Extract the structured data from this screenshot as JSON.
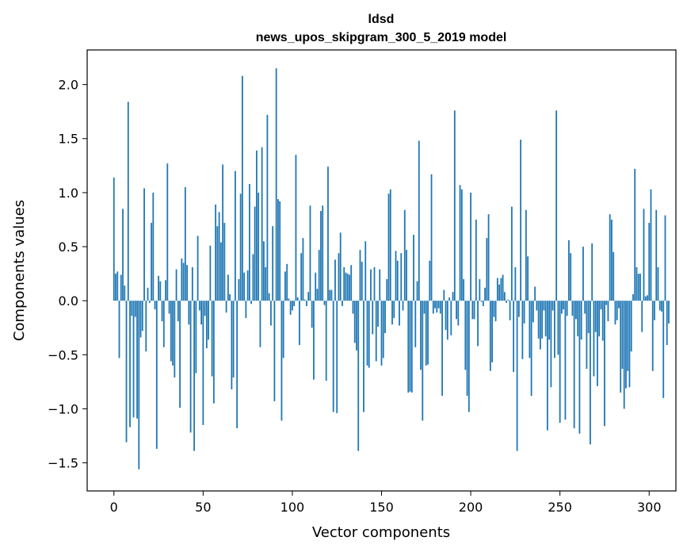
{
  "chart_data": {
    "type": "bar",
    "title": "ldsd",
    "subtitle": "news_upos_skipgram_300_5_2019 model",
    "xlabel": "Vector components",
    "ylabel": "Components values",
    "xlim": [
      -15,
      315
    ],
    "ylim": [
      -1.76,
      2.32
    ],
    "xticks": [
      0,
      50,
      100,
      150,
      200,
      250,
      300
    ],
    "xtick_labels": [
      "0",
      "50",
      "100",
      "150",
      "200",
      "250",
      "300"
    ],
    "yticks": [
      -1.5,
      -1.0,
      -0.5,
      0.0,
      0.5,
      1.0,
      1.5,
      2.0
    ],
    "ytick_labels": [
      "−1.5",
      "−1.0",
      "−0.5",
      "0.0",
      "0.5",
      "1.0",
      "1.5",
      "2.0"
    ],
    "bar_color": "#1f77b4",
    "grid": false,
    "values": [
      1.14,
      0.25,
      0.27,
      -0.53,
      0.24,
      0.85,
      0.14,
      -1.31,
      1.84,
      -1.17,
      -0.14,
      -1.08,
      -0.15,
      -1.09,
      -1.56,
      -0.34,
      -0.28,
      1.04,
      -0.47,
      0.12,
      -0.02,
      0.72,
      1.0,
      -0.08,
      -1.37,
      0.23,
      0.18,
      -0.19,
      -0.43,
      0.19,
      1.27,
      -0.12,
      -0.56,
      -0.6,
      -0.71,
      0.29,
      -0.19,
      -0.99,
      0.39,
      0.35,
      1.05,
      0.33,
      -0.22,
      -1.22,
      0.31,
      -1.39,
      -0.67,
      0.6,
      -0.09,
      -0.22,
      -1.15,
      -0.14,
      -0.44,
      -0.36,
      0.51,
      -0.7,
      -0.95,
      0.89,
      0.69,
      0.82,
      0.54,
      1.26,
      0.72,
      -0.11,
      0.24,
      0.06,
      -0.82,
      -0.71,
      1.2,
      -1.18,
      0.2,
      0.99,
      2.08,
      0.26,
      -0.16,
      0.28,
      1.08,
      -0.03,
      0.43,
      0.87,
      1.39,
      1.0,
      -0.43,
      1.42,
      0.55,
      0.31,
      1.72,
      0.07,
      -0.23,
      0.69,
      -0.93,
      2.15,
      0.94,
      0.92,
      -1.11,
      -0.53,
      0.27,
      0.34,
      0.02,
      -0.13,
      -0.09,
      -0.05,
      1.35,
      0.03,
      -0.41,
      0.44,
      0.58,
      0.01,
      -0.05,
      0.08,
      0.88,
      -0.25,
      -0.73,
      0.26,
      0.11,
      0.47,
      0.83,
      0.88,
      -0.04,
      -0.74,
      1.24,
      0.1,
      0.1,
      -1.03,
      0.38,
      -1.04,
      0.44,
      0.63,
      -0.05,
      0.31,
      0.26,
      0.25,
      0.24,
      0.33,
      -0.12,
      -0.39,
      -0.46,
      -1.39,
      0.47,
      0.36,
      -1.03,
      0.55,
      -0.6,
      -0.62,
      0.29,
      -0.31,
      0.31,
      -0.56,
      -0.24,
      0.29,
      -0.6,
      -0.53,
      -0.3,
      0.2,
      0.99,
      1.03,
      -0.22,
      -0.16,
      0.46,
      0.37,
      -0.23,
      0.44,
      -0.09,
      0.84,
      0.47,
      -0.85,
      -0.84,
      -0.85,
      0.61,
      -0.43,
      0.18,
      1.48,
      -0.64,
      -1.11,
      -0.12,
      -0.6,
      -0.59,
      0.37,
      1.17,
      -0.12,
      -0.07,
      -0.11,
      -0.07,
      -0.12,
      -0.88,
      0.1,
      -0.27,
      -0.36,
      0.03,
      -0.32,
      0.08,
      1.76,
      -0.17,
      -0.23,
      1.07,
      1.03,
      0.2,
      -0.64,
      -0.88,
      -1.03,
      1.0,
      -0.17,
      -0.17,
      0.75,
      -0.42,
      0.2,
      -0.01,
      -0.05,
      0.12,
      0.58,
      0.8,
      -0.65,
      -0.57,
      -0.15,
      -0.19,
      0.21,
      0.15,
      0.21,
      0.24,
      0.08,
      -0.02,
      0.01,
      -0.18,
      0.87,
      -0.66,
      0.31,
      -1.39,
      -0.15,
      1.49,
      -0.54,
      -0.21,
      0.84,
      0.41,
      -0.53,
      -0.88,
      -0.2,
      0.13,
      -0.09,
      -0.35,
      -0.45,
      -0.35,
      -0.09,
      -0.33,
      -1.2,
      -0.36,
      -0.8,
      -0.09,
      -0.53,
      1.76,
      -0.5,
      -1.13,
      -0.12,
      -0.08,
      -1.1,
      -0.14,
      0.56,
      0.44,
      -0.14,
      -1.18,
      -0.17,
      -0.33,
      -1.23,
      -0.36,
      0.5,
      -0.12,
      -0.63,
      -0.3,
      -1.33,
      0.53,
      -0.7,
      -0.29,
      -0.79,
      -0.33,
      -0.08,
      -0.37,
      -1.16,
      -0.04,
      -0.19,
      0.8,
      0.75,
      0.45,
      -0.22,
      -0.18,
      -0.07,
      -0.85,
      -0.63,
      -1.0,
      -0.81,
      -0.65,
      -0.8,
      -0.47,
      0.06,
      1.22,
      0.31,
      0.25,
      0.25,
      -0.29,
      0.85,
      0.04,
      0.05,
      0.72,
      1.03,
      -0.65,
      -0.18,
      0.84,
      0.31,
      -0.09,
      -0.1,
      -0.9,
      0.79,
      -0.41,
      -0.21
    ]
  }
}
